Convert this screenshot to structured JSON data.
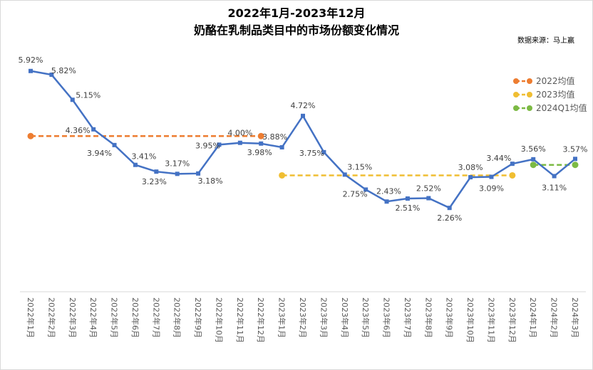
{
  "title_line1": "2022年1月-2023年12月",
  "title_line2": "奶酪在乳制品类目中的市场份额变化情况",
  "source_note": "数据来源：马上赢",
  "chart_data": {
    "type": "line",
    "title": "2022年1月-2023年12月 奶酪在乳制品类目中的市场份额变化情况",
    "xlabel": "",
    "ylabel": "",
    "ylim": [
      0,
      7
    ],
    "grid": false,
    "legend_position": "right",
    "categories": [
      "2022年1月",
      "2022年2月",
      "2022年3月",
      "2022年4月",
      "2022年5月",
      "2022年6月",
      "2022年7月",
      "2022年8月",
      "2022年9月",
      "2022年10月",
      "2022年11月",
      "2022年12月",
      "2023年1月",
      "2023年2月",
      "2023年3月",
      "2023年4月",
      "2023年5月",
      "2023年6月",
      "2023年7月",
      "2023年8月",
      "2023年9月",
      "2023年10月",
      "2023年11月",
      "2023年12月",
      "2024年1月",
      "2024年2月",
      "2024年3月"
    ],
    "series": [
      {
        "values": [
          5.92,
          5.82,
          5.15,
          4.36,
          3.94,
          3.41,
          3.23,
          3.17,
          3.18,
          3.95,
          4.0,
          3.98,
          3.88,
          4.72,
          3.75,
          3.15,
          2.75,
          2.43,
          2.51,
          2.52,
          2.26,
          3.08,
          3.09,
          3.44,
          3.56,
          3.11,
          3.57
        ],
        "labels": [
          "5.92%",
          "5.82%",
          "5.15%",
          "4.36%",
          "3.94%",
          "3.41%",
          "3.23%",
          "3.17%",
          "3.18%",
          "3.95%",
          "4.00%",
          "3.98%",
          "3.88%",
          "4.72%",
          "3.75%",
          "3.15%",
          "2.75%",
          "2.43%",
          "2.51%",
          "2.52%",
          "2.26%",
          "3.08%",
          "3.09%",
          "3.44%",
          "3.56%",
          "3.11%",
          "3.57%"
        ],
        "color": "#4472C4"
      }
    ],
    "averages": [
      {
        "name": "2022均值",
        "value": 4.18,
        "from": "2022年1月",
        "to": "2022年12月",
        "color": "#ED7D31"
      },
      {
        "name": "2023均值",
        "value": 3.13,
        "from": "2023年1月",
        "to": "2023年12月",
        "color": "#F0BE32"
      },
      {
        "name": "2024Q1均值",
        "value": 3.41,
        "from": "2024年1月",
        "to": "2024年3月",
        "color": "#7CBA44"
      }
    ]
  }
}
